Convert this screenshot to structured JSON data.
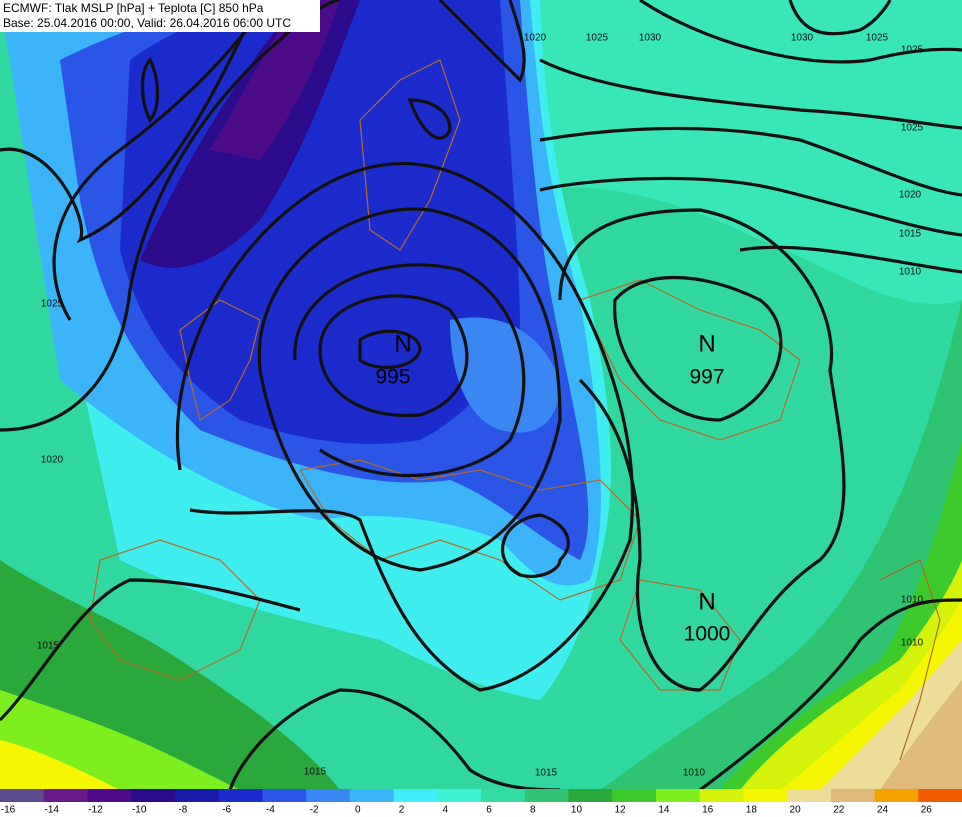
{
  "header": {
    "line1": "ECMWF: Tlak MSLP [hPa] + Teplota [C] 850 hPa",
    "line2": "Base: 25.04.2016 00:00, Valid: 26.04.2016 06:00 UTC"
  },
  "centers": [
    {
      "label": "N",
      "value": "995"
    },
    {
      "label": "N",
      "value": "997"
    },
    {
      "label": "N",
      "value": "1000"
    }
  ],
  "isobar_labels": [
    "1020",
    "1025",
    "1030",
    "1030",
    "1025",
    "1025",
    "1025",
    "1020",
    "1015",
    "1010",
    "1025",
    "1020",
    "1015",
    "1015",
    "1015",
    "1010",
    "1010",
    "1010"
  ],
  "colorbar": {
    "ticks": [
      -16,
      -14,
      -12,
      -10,
      -8,
      -6,
      -4,
      -2,
      0,
      2,
      4,
      6,
      8,
      10,
      12,
      14,
      16,
      18,
      20,
      22,
      24,
      26
    ],
    "colors": [
      "#5c4a8c",
      "#6a1a86",
      "#4c0c8a",
      "#2c0a8c",
      "#1a1aa8",
      "#1c2ccc",
      "#2a55e6",
      "#3a86f2",
      "#3cb4fa",
      "#40eefa",
      "#3ef0d4",
      "#34dca4",
      "#2ec472",
      "#2aa83c",
      "#3cca2c",
      "#7eee1e",
      "#d4f20a",
      "#f6f600",
      "#eedc9a",
      "#deba7c",
      "#f4a200",
      "#f25c00"
    ]
  }
}
